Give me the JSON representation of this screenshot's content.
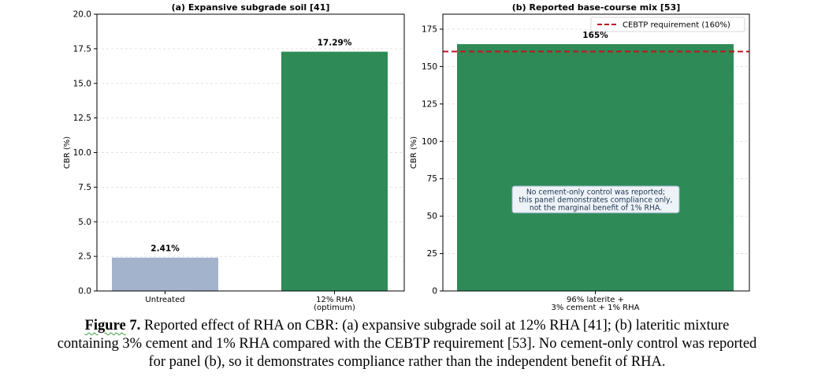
{
  "chart_data": [
    {
      "type": "bar",
      "title": "(a) Expansive subgrade soil [41]",
      "ylabel": "CBR (%)",
      "ylim": [
        0,
        20
      ],
      "yticks": [
        "0.0",
        "2.5",
        "5.0",
        "7.5",
        "10.0",
        "12.5",
        "15.0",
        "17.5",
        "20.0"
      ],
      "categories": [
        [
          "Untreated"
        ],
        [
          "12% RHA",
          "(optimum)"
        ]
      ],
      "values": [
        2.41,
        17.29
      ],
      "value_labels": [
        "2.41%",
        "17.29%"
      ],
      "bar_colors": [
        "#a3b3cb",
        "#2e8b57"
      ],
      "grid": true
    },
    {
      "type": "bar",
      "title": "(b) Reported base-course mix [53]",
      "ylabel": "CBR (%)",
      "ylim": [
        0,
        185
      ],
      "yticks": [
        "0",
        "25",
        "50",
        "75",
        "100",
        "125",
        "150",
        "175"
      ],
      "categories": [
        [
          "96% laterite +",
          "3% cement + 1% RHA"
        ]
      ],
      "values": [
        165
      ],
      "value_labels": [
        "165%"
      ],
      "bar_colors": [
        "#2e8b57"
      ],
      "reference_line": {
        "value": 160,
        "label": "CEBTP requirement (160%)",
        "color": "#c0141c",
        "style": "dashed"
      },
      "legend_placement": "top-right",
      "annotation": [
        "No cement-only control was reported;",
        "this panel demonstrates compliance only,",
        "not the marginal benefit of 1% RHA."
      ],
      "grid": true
    }
  ],
  "caption": {
    "label_word": "Figure",
    "label_number": " 7.",
    "lines": [
      "Reported effect of RHA on CBR: (a) expansive subgrade soil at 12% RHA [41]; (b) lateritic mixture",
      "containing 3% cement and 1% RHA compared with the CEBTP requirement [53]. No cement-only control was reported",
      "for panel (b), so it demonstrates compliance rather than the independent benefit of RHA."
    ]
  }
}
